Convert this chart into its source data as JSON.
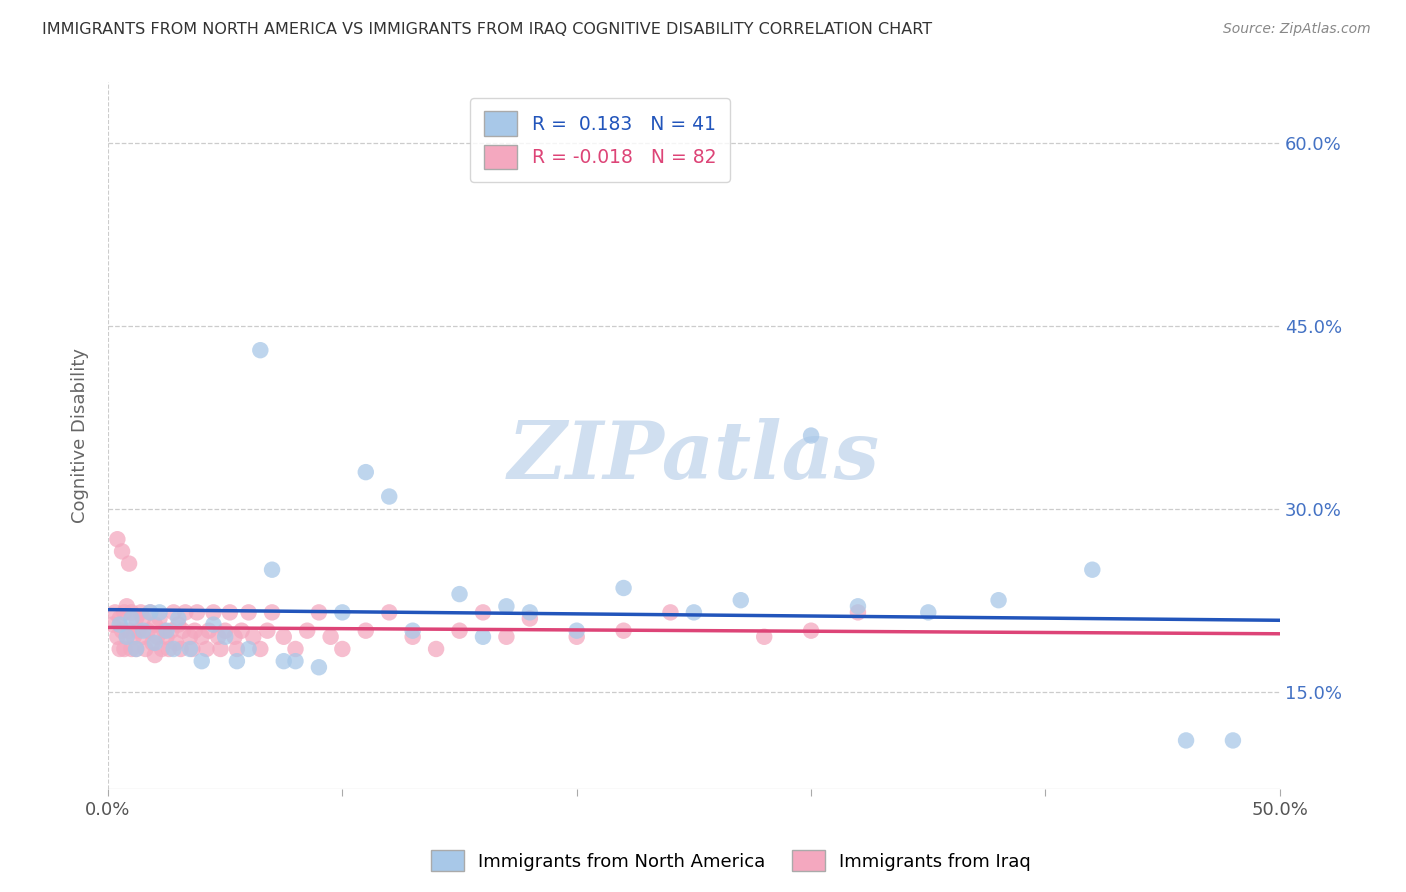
{
  "title": "IMMIGRANTS FROM NORTH AMERICA VS IMMIGRANTS FROM IRAQ COGNITIVE DISABILITY CORRELATION CHART",
  "source": "Source: ZipAtlas.com",
  "ylabel": "Cognitive Disability",
  "x_min": 0.0,
  "x_max": 0.5,
  "y_min": 0.07,
  "y_max": 0.65,
  "x_ticks": [
    0.0,
    0.1,
    0.2,
    0.3,
    0.4,
    0.5
  ],
  "x_tick_labels": [
    "0.0%",
    "",
    "",
    "",
    "",
    "50.0%"
  ],
  "y_ticks": [
    0.15,
    0.3,
    0.45,
    0.6
  ],
  "y_tick_labels": [
    "15.0%",
    "30.0%",
    "45.0%",
    "60.0%"
  ],
  "r_blue": 0.183,
  "n_blue": 41,
  "r_pink": -0.018,
  "n_pink": 82,
  "blue_color": "#a8c8e8",
  "pink_color": "#f4a8bf",
  "blue_line_color": "#2255bb",
  "pink_line_color": "#dd4477",
  "watermark_color": "#d0dff0",
  "legend_label_blue": "Immigrants from North America",
  "legend_label_pink": "Immigrants from Iraq",
  "blue_scatter_x": [
    0.005,
    0.008,
    0.01,
    0.012,
    0.015,
    0.018,
    0.02,
    0.022,
    0.025,
    0.028,
    0.03,
    0.035,
    0.04,
    0.045,
    0.05,
    0.055,
    0.06,
    0.065,
    0.07,
    0.075,
    0.08,
    0.09,
    0.1,
    0.11,
    0.12,
    0.13,
    0.15,
    0.16,
    0.17,
    0.18,
    0.2,
    0.22,
    0.25,
    0.27,
    0.3,
    0.32,
    0.35,
    0.38,
    0.42,
    0.46,
    0.48
  ],
  "blue_scatter_y": [
    0.205,
    0.195,
    0.21,
    0.185,
    0.2,
    0.215,
    0.19,
    0.215,
    0.2,
    0.185,
    0.21,
    0.185,
    0.175,
    0.205,
    0.195,
    0.175,
    0.185,
    0.43,
    0.25,
    0.175,
    0.175,
    0.17,
    0.215,
    0.33,
    0.31,
    0.2,
    0.23,
    0.195,
    0.22,
    0.215,
    0.2,
    0.235,
    0.215,
    0.225,
    0.36,
    0.22,
    0.215,
    0.225,
    0.25,
    0.11,
    0.11
  ],
  "pink_scatter_x": [
    0.002,
    0.003,
    0.004,
    0.005,
    0.005,
    0.006,
    0.007,
    0.007,
    0.008,
    0.008,
    0.009,
    0.01,
    0.01,
    0.011,
    0.012,
    0.012,
    0.013,
    0.014,
    0.015,
    0.015,
    0.016,
    0.017,
    0.018,
    0.019,
    0.02,
    0.02,
    0.021,
    0.022,
    0.023,
    0.024,
    0.025,
    0.026,
    0.027,
    0.028,
    0.029,
    0.03,
    0.031,
    0.032,
    0.033,
    0.035,
    0.036,
    0.037,
    0.038,
    0.04,
    0.042,
    0.043,
    0.045,
    0.047,
    0.048,
    0.05,
    0.052,
    0.054,
    0.055,
    0.057,
    0.06,
    0.062,
    0.065,
    0.068,
    0.07,
    0.075,
    0.08,
    0.085,
    0.09,
    0.095,
    0.1,
    0.11,
    0.12,
    0.13,
    0.14,
    0.15,
    0.16,
    0.17,
    0.18,
    0.2,
    0.22,
    0.24,
    0.28,
    0.3,
    0.32,
    0.004,
    0.006,
    0.009
  ],
  "pink_scatter_y": [
    0.205,
    0.215,
    0.195,
    0.185,
    0.21,
    0.2,
    0.215,
    0.185,
    0.22,
    0.195,
    0.2,
    0.185,
    0.215,
    0.195,
    0.21,
    0.185,
    0.2,
    0.215,
    0.195,
    0.21,
    0.185,
    0.2,
    0.215,
    0.19,
    0.205,
    0.18,
    0.195,
    0.21,
    0.185,
    0.2,
    0.195,
    0.185,
    0.2,
    0.215,
    0.19,
    0.205,
    0.185,
    0.2,
    0.215,
    0.195,
    0.185,
    0.2,
    0.215,
    0.195,
    0.185,
    0.2,
    0.215,
    0.195,
    0.185,
    0.2,
    0.215,
    0.195,
    0.185,
    0.2,
    0.215,
    0.195,
    0.185,
    0.2,
    0.215,
    0.195,
    0.185,
    0.2,
    0.215,
    0.195,
    0.185,
    0.2,
    0.215,
    0.195,
    0.185,
    0.2,
    0.215,
    0.195,
    0.21,
    0.195,
    0.2,
    0.215,
    0.195,
    0.2,
    0.215,
    0.275,
    0.265,
    0.255
  ]
}
